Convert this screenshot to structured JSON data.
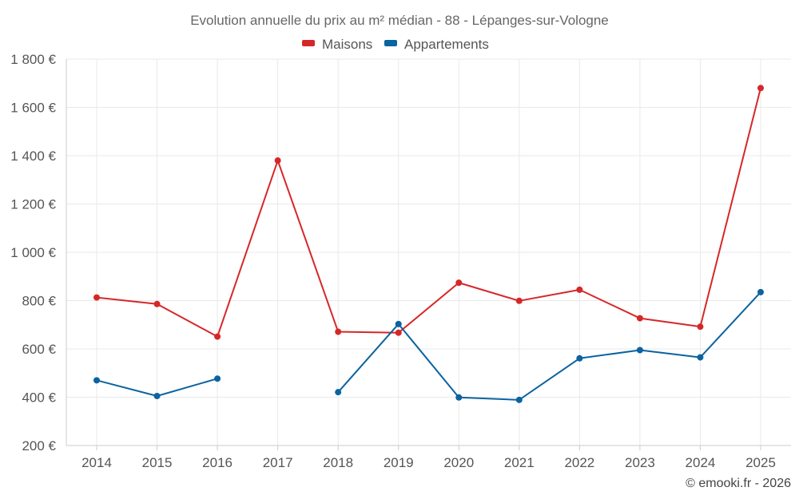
{
  "chart_data": {
    "type": "line",
    "title": "Evolution annuelle du prix au m² médian - 88 - Lépanges-sur-Vologne",
    "categories": [
      "2014",
      "2015",
      "2016",
      "2017",
      "2018",
      "2019",
      "2020",
      "2021",
      "2022",
      "2023",
      "2024",
      "2025"
    ],
    "series": [
      {
        "name": "Maisons",
        "color": "#d62728",
        "values": [
          813,
          786,
          651,
          1380,
          671,
          667,
          874,
          799,
          845,
          727,
          692,
          1680
        ]
      },
      {
        "name": "Appartements",
        "color": "#0b63a0",
        "values": [
          470,
          405,
          477,
          null,
          421,
          703,
          399,
          389,
          561,
          595,
          565,
          835
        ]
      }
    ],
    "ylim": [
      200,
      1800
    ],
    "yticks": [
      200,
      400,
      600,
      800,
      1000,
      1200,
      1400,
      1600,
      1800
    ],
    "ytick_labels": [
      "200 €",
      "400 €",
      "600 €",
      "800 €",
      "1 000 €",
      "1 200 €",
      "1 400 €",
      "1 600 €",
      "1 800 €"
    ],
    "grid": true,
    "legend_position": "top-center",
    "xlabel": "",
    "ylabel": ""
  },
  "credit": "© emooki.fr - 2026"
}
